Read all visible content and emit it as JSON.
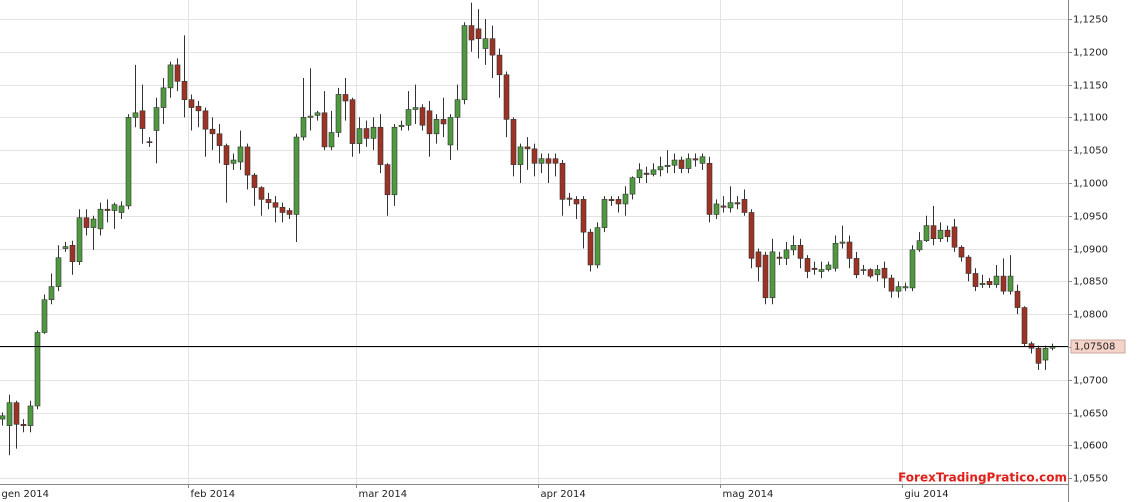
{
  "chart_data": {
    "type": "candlestick",
    "watermark": "ForexTradingPratico.com",
    "up_color": "#4f9a3e",
    "down_color": "#9c3325",
    "wick_color": "#333333",
    "last_price_color": "#000000",
    "grid": true,
    "categories": [
      null,
      null,
      null,
      null,
      null,
      null,
      null,
      null,
      null,
      null,
      null,
      null,
      null,
      null,
      null,
      null,
      null,
      null,
      null,
      null,
      null,
      null,
      null,
      null,
      null,
      null,
      null,
      null,
      null,
      null,
      null,
      null,
      null,
      null,
      null,
      null,
      null,
      null,
      null,
      null,
      null,
      null,
      null,
      null,
      null,
      null,
      null,
      null,
      null,
      null,
      null,
      null,
      null,
      null,
      null,
      null,
      null,
      null,
      null,
      null,
      null,
      null,
      null,
      null,
      null,
      null,
      null,
      null,
      null,
      null,
      null,
      null,
      null,
      null,
      null,
      null,
      null,
      null,
      null,
      null,
      null,
      null,
      null,
      null,
      null,
      null,
      null,
      null,
      null,
      null,
      null,
      null,
      null,
      null,
      null,
      null,
      null,
      null,
      null,
      null,
      null,
      null,
      null,
      null,
      null,
      null,
      null,
      null,
      null,
      null,
      null,
      null,
      null,
      null,
      null,
      null,
      null,
      null,
      null,
      null,
      null,
      null,
      null,
      null,
      null,
      null,
      null,
      null,
      null,
      null,
      null,
      null,
      null,
      null,
      null,
      null,
      null,
      null,
      null,
      null,
      null,
      null,
      null,
      null,
      null,
      null,
      null,
      null,
      null,
      null,
      null
    ],
    "open": [
      1.064,
      1.063,
      1.0665,
      1.0632,
      1.063,
      1.066,
      1.0772,
      1.0822,
      1.0842,
      1.09,
      1.0905,
      1.088,
      1.0947,
      1.0932,
      1.093,
      1.096,
      1.0958,
      1.0955,
      1.0965,
      1.11,
      1.111,
      1.1063,
      1.108,
      1.1115,
      1.1145,
      1.118,
      1.1155,
      1.1127,
      1.1117,
      1.111,
      1.1082,
      1.1075,
      1.1057,
      1.103,
      1.1032,
      1.1055,
      1.1012,
      1.0993,
      1.0975,
      1.097,
      1.0963,
      1.0958,
      1.0952,
      1.107,
      1.11,
      1.1103,
      1.1107,
      1.1055,
      1.1077,
      1.1135,
      1.1127,
      1.106,
      1.1083,
      1.1068,
      1.1085,
      1.1028,
      1.0982,
      1.1086,
      1.1088,
      1.1112,
      1.1115,
      1.111,
      1.1075,
      1.1097,
      1.1058,
      1.11,
      1.1127,
      1.124,
      1.1235,
      1.1205,
      1.122,
      1.1195,
      1.1165,
      1.1097,
      1.1028,
      1.1055,
      1.1052,
      1.103,
      1.1037,
      1.1037,
      1.103,
      1.0977,
      1.0975,
      1.0975,
      1.0925,
      1.0875,
      1.0932,
      1.0975,
      1.0975,
      1.0968,
      1.0983,
      1.1008,
      1.1015,
      1.1013,
      1.102,
      1.1025,
      1.1027,
      1.1035,
      1.1022,
      1.1037,
      1.103,
      1.103,
      1.0952,
      1.0965,
      1.0962,
      1.097,
      1.0975,
      1.0955,
      1.0895,
      1.089,
      1.0825,
      1.0887,
      1.0885,
      1.0898,
      1.0905,
      1.0885,
      1.087,
      1.0865,
      1.0868,
      1.087,
      1.0908,
      1.091,
      1.0885,
      1.0868,
      1.0868,
      1.086,
      1.087,
      1.0855,
      1.0835,
      1.084,
      1.084,
      1.0898,
      1.0912,
      1.0935,
      1.0915,
      1.0928,
      1.0933,
      1.0902,
      1.0887,
      1.0862,
      1.0845,
      1.085,
      1.0845,
      1.0858,
      1.0835,
      1.0835,
      1.081,
      1.0755,
      1.0748,
      1.073,
      1.0748
    ],
    "high": [
      1.065,
      1.0677,
      1.0668,
      1.064,
      1.0668,
      1.0775,
      1.083,
      1.0862,
      1.0905,
      1.091,
      1.0912,
      1.096,
      1.096,
      1.095,
      1.097,
      1.0975,
      1.097,
      1.0972,
      1.1105,
      1.118,
      1.115,
      1.107,
      1.113,
      1.116,
      1.1185,
      1.119,
      1.1225,
      1.1135,
      1.1125,
      1.1115,
      1.11,
      1.109,
      1.106,
      1.1045,
      1.108,
      1.106,
      1.1015,
      1.0995,
      1.0985,
      1.098,
      1.097,
      1.0962,
      1.1075,
      1.116,
      1.1175,
      1.111,
      1.114,
      1.111,
      1.1145,
      1.116,
      1.113,
      1.11,
      1.1095,
      1.11,
      1.1105,
      1.103,
      1.109,
      1.1095,
      1.114,
      1.115,
      1.112,
      1.1125,
      1.1105,
      1.113,
      1.1105,
      1.115,
      1.1245,
      1.1275,
      1.1265,
      1.125,
      1.124,
      1.1205,
      1.117,
      1.11,
      1.106,
      1.107,
      1.106,
      1.1045,
      1.1045,
      1.1045,
      1.1035,
      1.0985,
      1.098,
      1.098,
      1.093,
      1.094,
      1.098,
      1.098,
      1.098,
      1.0995,
      1.101,
      1.103,
      1.1025,
      1.103,
      1.104,
      1.105,
      1.1045,
      1.104,
      1.1045,
      1.1045,
      1.1045,
      1.104,
      1.0975,
      1.098,
      1.0995,
      1.098,
      1.099,
      1.096,
      1.09,
      1.0895,
      1.0915,
      1.0895,
      1.091,
      1.092,
      1.0915,
      1.089,
      1.088,
      1.088,
      1.088,
      1.092,
      1.0935,
      1.092,
      1.0895,
      1.0875,
      1.087,
      1.0875,
      1.088,
      1.086,
      1.085,
      1.0848,
      1.0905,
      1.0925,
      1.095,
      1.0965,
      1.094,
      1.0935,
      1.0945,
      1.0905,
      1.089,
      1.087,
      1.086,
      1.0855,
      1.0875,
      1.0885,
      1.089,
      1.0845,
      1.0812,
      1.0758,
      1.0752,
      1.0752,
      1.0755
    ],
    "low": [
      1.063,
      1.0585,
      1.0595,
      1.062,
      1.062,
      1.0655,
      1.077,
      1.0815,
      1.0835,
      1.0895,
      1.086,
      1.0875,
      1.092,
      1.0898,
      1.092,
      1.094,
      1.093,
      1.0945,
      1.096,
      1.1085,
      1.106,
      1.1055,
      1.103,
      1.109,
      1.113,
      1.114,
      1.11,
      1.108,
      1.1085,
      1.104,
      1.105,
      1.103,
      1.097,
      1.102,
      1.102,
      1.099,
      1.0965,
      1.095,
      1.096,
      1.094,
      1.094,
      1.0945,
      1.091,
      1.1065,
      1.108,
      1.1095,
      1.105,
      1.105,
      1.107,
      1.1095,
      1.104,
      1.1045,
      1.1055,
      1.105,
      1.1015,
      1.095,
      1.0965,
      1.108,
      1.108,
      1.109,
      1.108,
      1.104,
      1.106,
      1.107,
      1.1035,
      1.105,
      1.112,
      1.12,
      1.119,
      1.118,
      1.116,
      1.113,
      1.107,
      1.101,
      1.1,
      1.102,
      1.101,
      1.1015,
      1.1,
      1.101,
      1.095,
      1.0965,
      1.0945,
      1.09,
      1.0865,
      1.087,
      1.0925,
      1.0965,
      1.0955,
      1.095,
      1.0975,
      1.1,
      1.1,
      1.101,
      1.101,
      1.1015,
      1.1015,
      1.1015,
      1.1015,
      1.1025,
      1.102,
      1.094,
      1.0945,
      1.0955,
      1.0955,
      1.096,
      1.095,
      1.087,
      1.085,
      1.0815,
      1.0815,
      1.0875,
      1.0875,
      1.089,
      1.087,
      1.0855,
      1.086,
      1.0855,
      1.0865,
      1.0865,
      1.09,
      1.087,
      1.0855,
      1.086,
      1.0855,
      1.085,
      1.084,
      1.0825,
      1.0825,
      1.0835,
      1.0835,
      1.0895,
      1.091,
      1.0905,
      1.091,
      1.091,
      1.0895,
      1.088,
      1.085,
      1.0835,
      1.084,
      1.084,
      1.084,
      1.083,
      1.083,
      1.08,
      1.075,
      1.074,
      1.0715,
      1.0715,
      1.0745
    ],
    "close": [
      1.0645,
      1.0665,
      1.0632,
      1.063,
      1.066,
      1.0772,
      1.0822,
      1.0842,
      1.0886,
      1.0903,
      1.088,
      1.0947,
      1.0932,
      1.0945,
      1.096,
      1.0958,
      1.0967,
      1.0965,
      1.11,
      1.1107,
      1.1083,
      1.1062,
      1.1115,
      1.1145,
      1.118,
      1.1155,
      1.1127,
      1.1115,
      1.111,
      1.1082,
      1.1075,
      1.1057,
      1.1028,
      1.1035,
      1.1055,
      1.1012,
      1.0993,
      1.0975,
      1.097,
      1.0963,
      1.0955,
      1.0952,
      1.107,
      1.11,
      1.1102,
      1.1107,
      1.1055,
      1.1077,
      1.1135,
      1.1125,
      1.106,
      1.1083,
      1.1068,
      1.1085,
      1.1028,
      1.0982,
      1.1085,
      1.1088,
      1.1112,
      1.1115,
      1.1088,
      1.1075,
      1.1097,
      1.109,
      1.11,
      1.1127,
      1.124,
      1.1218,
      1.122,
      1.122,
      1.1195,
      1.1165,
      1.1097,
      1.1028,
      1.1055,
      1.1052,
      1.103,
      1.1037,
      1.103,
      1.103,
      1.0975,
      1.0975,
      1.0968,
      1.0925,
      1.0875,
      1.0932,
      1.0975,
      1.0973,
      1.0968,
      1.0983,
      1.1008,
      1.102,
      1.1013,
      1.102,
      1.1025,
      1.1027,
      1.1035,
      1.1022,
      1.1037,
      1.1035,
      1.104,
      1.0952,
      1.0968,
      1.0963,
      1.097,
      1.0968,
      1.0955,
      1.0885,
      1.0872,
      1.0825,
      1.0895,
      1.0885,
      1.0898,
      1.0905,
      1.0885,
      1.0865,
      1.0868,
      1.0868,
      1.0875,
      1.0908,
      1.091,
      1.0885,
      1.086,
      1.0868,
      1.0858,
      1.0868,
      1.0855,
      1.0835,
      1.0842,
      1.0842,
      1.0898,
      1.0912,
      1.0935,
      1.0915,
      1.0928,
      1.0918,
      1.0902,
      1.0887,
      1.0862,
      1.0842,
      1.0847,
      1.0845,
      1.0858,
      1.0835,
      1.0858,
      1.081,
      1.0755,
      1.0748,
      1.0725,
      1.0748,
      1.07508
    ],
    "last_price": {
      "value": 1.07508,
      "label": "1,07508"
    },
    "xticks": [
      {
        "value": 0,
        "label": "gen 2014"
      },
      {
        "value": 27,
        "label": "feb 2014"
      },
      {
        "value": 51,
        "label": "mar 2014"
      },
      {
        "value": 77,
        "label": "apr 2014"
      },
      {
        "value": 103,
        "label": "mag 2014"
      },
      {
        "value": 129,
        "label": "giu 2014"
      }
    ],
    "ylim": [
      1.0541,
      1.1279
    ],
    "yticks": [
      {
        "value": 1.055,
        "label": "1,0550"
      },
      {
        "value": 1.06,
        "label": "1,0600"
      },
      {
        "value": 1.065,
        "label": "1,0650"
      },
      {
        "value": 1.07,
        "label": "1,0700"
      },
      {
        "value": 1.075,
        "label": "1,0750"
      },
      {
        "value": 1.08,
        "label": "1,0800"
      },
      {
        "value": 1.085,
        "label": "1,0850"
      },
      {
        "value": 1.09,
        "label": "1,0900"
      },
      {
        "value": 1.095,
        "label": "1,0950"
      },
      {
        "value": 1.1,
        "label": "1,1000"
      },
      {
        "value": 1.105,
        "label": "1,1050"
      },
      {
        "value": 1.11,
        "label": "1,1100"
      },
      {
        "value": 1.115,
        "label": "1,1150"
      },
      {
        "value": 1.12,
        "label": "1,1200"
      },
      {
        "value": 1.125,
        "label": "1,1250"
      }
    ]
  }
}
